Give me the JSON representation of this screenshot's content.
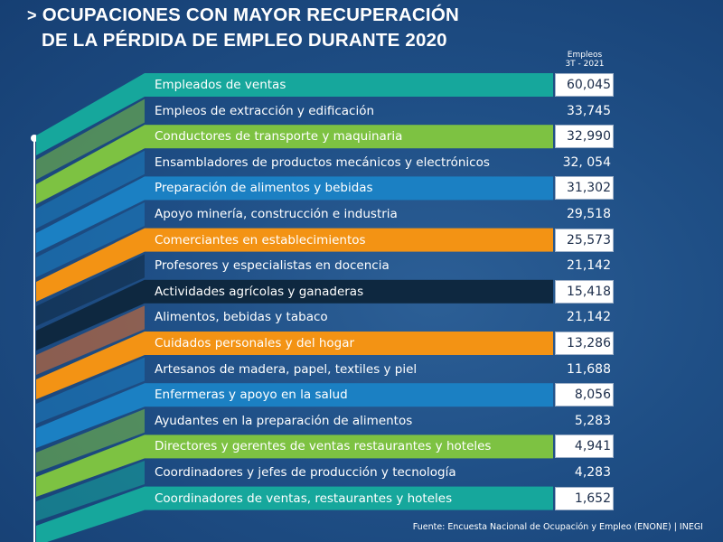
{
  "title": {
    "chevron": ">",
    "line1": "OCUPACIONES CON MAYOR RECUPERACIÓN",
    "line2": "DE LA PÉRDIDA DE EMPLEO DURANTE 2020"
  },
  "value_header": {
    "line1": "Empleos",
    "line2": "3T - 2021"
  },
  "source": "Fuente: Encuesta Nacional de Ocupación y Empleo (ENONE) | INEGI",
  "colors": {
    "teal": "#16a79c",
    "green": "#7dc242",
    "blue": "#1b80c3",
    "orange": "#f39314",
    "dark": "#0e2840",
    "red_orange": "#e8702a"
  },
  "chart_data": {
    "type": "table",
    "title": "OCUPACIONES CON MAYOR RECUPERACIÓN DE LA PÉRDIDA DE EMPLEO DURANTE 2020",
    "value_label": "Empleos 3T - 2021",
    "rows": [
      {
        "label": "Empleados de ventas",
        "value": "60,045",
        "highlight": true,
        "color": "teal"
      },
      {
        "label": "Empleos de extracción y edificación",
        "value": "33,745",
        "highlight": false,
        "color": "green"
      },
      {
        "label": "Conductores de transporte y maquinaria",
        "value": "32,990",
        "highlight": true,
        "color": "green"
      },
      {
        "label": "Ensambladores de productos mecánicos y electrónicos",
        "value": "32, 054",
        "highlight": false,
        "color": "blue"
      },
      {
        "label": "Preparación de alimentos y bebidas",
        "value": "31,302",
        "highlight": true,
        "color": "blue"
      },
      {
        "label": "Apoyo minería, construcción e industria",
        "value": "29,518",
        "highlight": false,
        "color": "blue"
      },
      {
        "label": "Comerciantes en establecimientos",
        "value": "25,573",
        "highlight": true,
        "color": "orange"
      },
      {
        "label": "Profesores y especialistas en docencia",
        "value": "21,142",
        "highlight": false,
        "color": "dark"
      },
      {
        "label": "Actividades agrícolas y ganaderas",
        "value": "15,418",
        "highlight": true,
        "color": "dark"
      },
      {
        "label": "Alimentos, bebidas y tabaco",
        "value": "21,142",
        "highlight": false,
        "color": "red_orange"
      },
      {
        "label": "Cuidados personales y del hogar",
        "value": "13,286",
        "highlight": true,
        "color": "orange"
      },
      {
        "label": "Artesanos de madera, papel, textiles y piel",
        "value": "11,688",
        "highlight": false,
        "color": "blue"
      },
      {
        "label": "Enfermeras y apoyo en la salud",
        "value": "8,056",
        "highlight": true,
        "color": "blue"
      },
      {
        "label": "Ayudantes en la preparación de alimentos",
        "value": "5,283",
        "highlight": false,
        "color": "green"
      },
      {
        "label": "Directores y gerentes de ventas restaurantes y hoteles",
        "value": "4,941",
        "highlight": true,
        "color": "green"
      },
      {
        "label": "Coordinadores y jefes de producción y tecnología",
        "value": "4,283",
        "highlight": false,
        "color": "teal"
      },
      {
        "label": "Coordinadores de ventas, restaurantes y hoteles",
        "value": "1,652",
        "highlight": true,
        "color": "teal"
      }
    ]
  }
}
